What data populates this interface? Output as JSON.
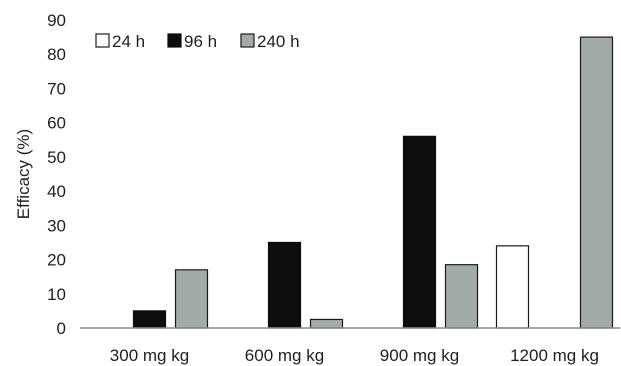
{
  "chart_data": {
    "type": "bar",
    "categories": [
      "300 mg kg",
      "600 mg kg",
      "900 mg kg",
      "1200 mg kg"
    ],
    "series": [
      {
        "name": "24 h",
        "values": [
          0,
          0,
          0,
          24
        ],
        "color": "#ffffff",
        "stroke": "#1a1a1a"
      },
      {
        "name": "96 h",
        "values": [
          5,
          25,
          56,
          0
        ],
        "color": "#0d0d0d",
        "stroke": "#0d0d0d"
      },
      {
        "name": "240 h",
        "values": [
          17,
          2.5,
          18.5,
          85
        ],
        "color": "#a3aba9",
        "stroke": "#1a1a1a"
      }
    ],
    "title": "",
    "xlabel": "",
    "ylabel": "Efficacy (%)",
    "ylim": [
      0,
      90
    ],
    "yticks": [
      0,
      10,
      20,
      30,
      40,
      50,
      60,
      70,
      80,
      90
    ],
    "grid": false,
    "legend": "top-left"
  }
}
